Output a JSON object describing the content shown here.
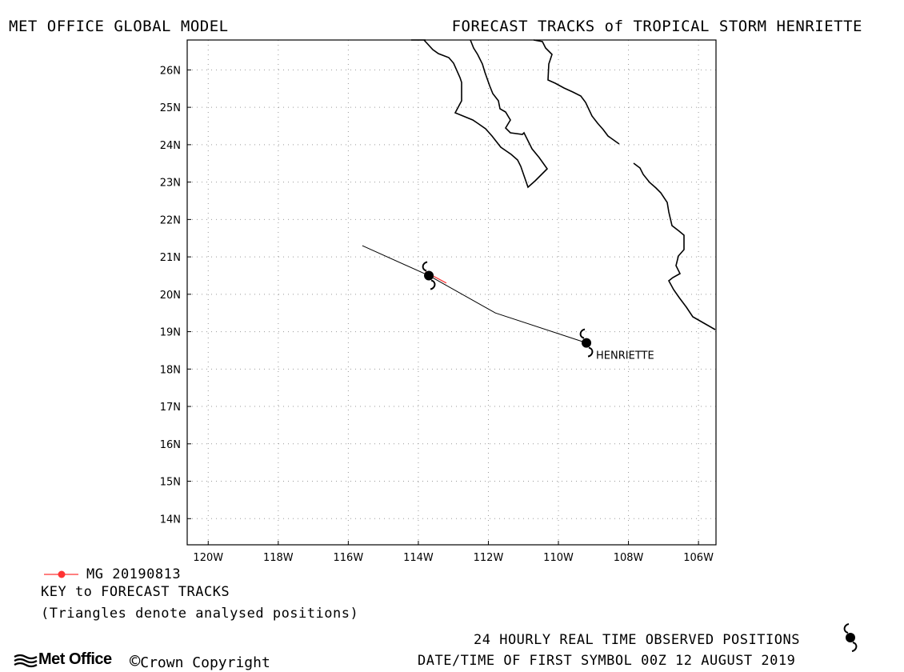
{
  "header": {
    "left_title": "MET OFFICE GLOBAL MODEL",
    "right_title": "FORECAST TRACKS of TROPICAL STORM HENRIETTE"
  },
  "map": {
    "lat_labels": [
      "26N",
      "25N",
      "24N",
      "23N",
      "22N",
      "21N",
      "20N",
      "19N",
      "18N",
      "17N",
      "16N",
      "15N",
      "14N"
    ],
    "lon_labels": [
      "120W",
      "118W",
      "116W",
      "114W",
      "112W",
      "110W",
      "108W",
      "106W"
    ],
    "grid": true,
    "lon_range": [
      -120.6,
      -105.5
    ],
    "lat_range": [
      13.3,
      26.8
    ]
  },
  "storm": {
    "name": "HENRIETTE",
    "observed_positions": [
      {
        "lat": 18.7,
        "lon": -109.2,
        "label": "HENRIETTE"
      },
      {
        "lat": 20.5,
        "lon": -113.7
      }
    ],
    "observed_track": [
      {
        "lat": 18.7,
        "lon": -109.2
      },
      {
        "lat": 19.5,
        "lon": -111.8
      },
      {
        "lat": 20.5,
        "lon": -113.7
      },
      {
        "lat": 21.3,
        "lon": -115.6
      }
    ]
  },
  "forecast_tracks": [
    {
      "name": "MG 20190813",
      "color": "#ff3333",
      "points": [
        {
          "lat": 20.6,
          "lon": -113.8
        },
        {
          "lat": 20.3,
          "lon": -113.2
        }
      ]
    }
  ],
  "legend": {
    "key_entry": "MG 20190813",
    "key_title": "KEY to FORECAST TRACKS",
    "key_note": "(Triangles denote analysed positions)",
    "observed_note": "24 HOURLY REAL TIME OBSERVED POSITIONS",
    "first_symbol": "DATE/TIME OF FIRST SYMBOL 00Z 12 AUGUST 2019"
  },
  "footer": {
    "logo_text": "Met Office",
    "copyright": "Crown Copyright",
    "copyright_symbol": "©"
  },
  "colors": {
    "track_line": "#000000",
    "forecast_red": "#ff3333",
    "grid_dots": "#999999"
  },
  "icons": {
    "storm_symbol": "tropical-storm-icon",
    "logo": "met-office-logo-icon"
  }
}
